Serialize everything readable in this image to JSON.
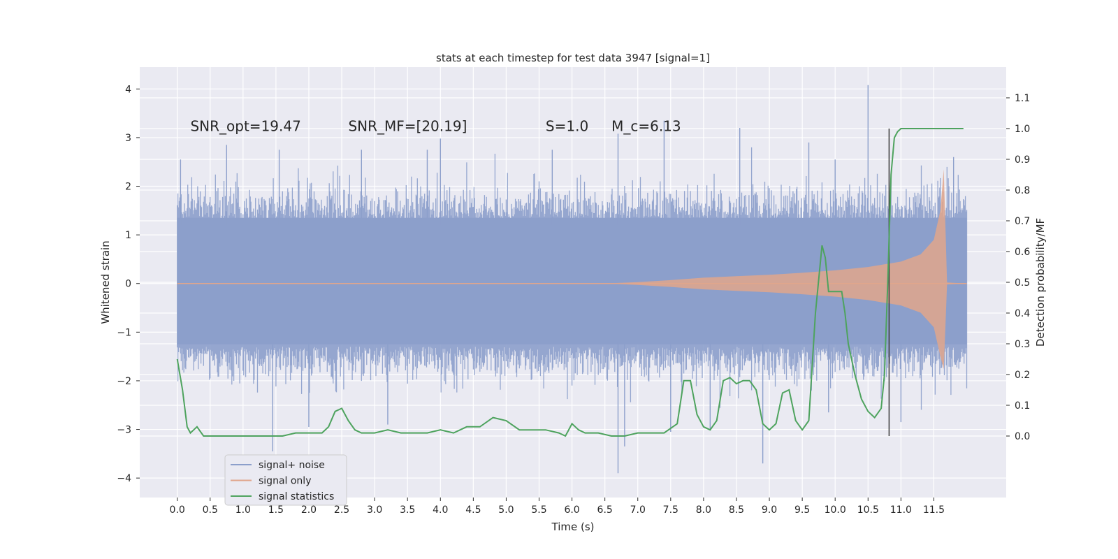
{
  "chart_data": {
    "type": "line",
    "title": "stats at each timestep for test data 3947 [signal=1]",
    "xlabel": "Time (s)",
    "ylabel": "Whitened strain",
    "ylabel_right": "Detection probability/MF",
    "xlim": [
      -0.57,
      12.6
    ],
    "ylim": [
      -4.4,
      4.45
    ],
    "ylim_right": [
      -0.2,
      1.2
    ],
    "x_ticks": [
      0.0,
      0.5,
      1.0,
      1.5,
      2.0,
      2.5,
      3.0,
      3.5,
      4.0,
      4.5,
      5.0,
      5.5,
      6.0,
      6.5,
      7.0,
      7.5,
      8.0,
      8.5,
      9.0,
      9.5,
      10.0,
      10.5,
      11.0,
      11.5
    ],
    "x_tick_labels": [
      "0.0",
      "0.5",
      "1.0",
      "1.5",
      "2.0",
      "2.5",
      "3.0",
      "3.5",
      "4.0",
      "4.5",
      "5.0",
      "5.5",
      "6.0",
      "6.5",
      "7.0",
      "7.5",
      "8.0",
      "8.5",
      "9.0",
      "9.5",
      "10.0",
      "10.5",
      "11.0",
      "11.5"
    ],
    "y_ticks": [
      -4,
      -3,
      -2,
      -1,
      0,
      1,
      2,
      3,
      4
    ],
    "y_tick_labels": [
      "−4",
      "−3",
      "−2",
      "−1",
      "0",
      "1",
      "2",
      "3",
      "4"
    ],
    "y_right_ticks": [
      0.0,
      0.1,
      0.2,
      0.3,
      0.4,
      0.5,
      0.6,
      0.7,
      0.8,
      0.9,
      1.0,
      1.1
    ],
    "y_right_tick_labels": [
      "0.0",
      "0.1",
      "0.2",
      "0.3",
      "0.4",
      "0.5",
      "0.6",
      "0.7",
      "0.8",
      "0.9",
      "1.0",
      "1.1"
    ],
    "annotations": [
      {
        "text": "SNR_opt=19.47",
        "x": 0.2,
        "y": 3.25
      },
      {
        "text": "SNR_MF=[20.19]",
        "x": 2.6,
        "y": 3.25
      },
      {
        "text": "S=1.0",
        "x": 5.6,
        "y": 3.25
      },
      {
        "text": "M_c=6.13",
        "x": 6.6,
        "y": 3.25
      }
    ],
    "vline_x": 10.82,
    "vline_y_right": [
      0.0,
      1.0
    ],
    "legend": {
      "placement": "lower-left",
      "entries": [
        {
          "label": "signal+ noise",
          "color": "#8c9fcb"
        },
        {
          "label": "signal only",
          "color": "#e0a68c"
        },
        {
          "label": "signal statistics",
          "color": "#4ea35e"
        }
      ]
    },
    "series": [
      {
        "name": "signal+ noise",
        "color": "#8c9fcb",
        "envelope_x": [
          0.0,
          12.0
        ],
        "typical_range": [
          -2.0,
          2.0
        ],
        "peaks_positive": [
          [
            0.05,
            2.55
          ],
          [
            0.75,
            2.85
          ],
          [
            1.55,
            2.75
          ],
          [
            2.8,
            2.75
          ],
          [
            3.8,
            2.75
          ],
          [
            4.0,
            2.98
          ],
          [
            5.7,
            2.75
          ],
          [
            6.7,
            3.08
          ],
          [
            7.4,
            3.35
          ],
          [
            8.55,
            3.2
          ],
          [
            9.6,
            2.9
          ],
          [
            10.0,
            2.55
          ],
          [
            10.5,
            4.08
          ],
          [
            11.8,
            2.6
          ]
        ],
        "peaks_negative": [
          [
            1.45,
            -3.45
          ],
          [
            2.0,
            -2.95
          ],
          [
            3.2,
            -2.9
          ],
          [
            6.7,
            -3.9
          ],
          [
            6.8,
            -3.35
          ],
          [
            7.5,
            -3.05
          ],
          [
            8.1,
            -3.0
          ],
          [
            8.9,
            -3.7
          ],
          [
            9.9,
            -2.65
          ],
          [
            11.0,
            -2.85
          ]
        ]
      },
      {
        "name": "signal only",
        "color": "#e0a68c",
        "amplitude_x": [
          6.5,
          7.0,
          7.5,
          8.0,
          8.5,
          9.0,
          9.5,
          10.0,
          10.5,
          11.0,
          11.3,
          11.5,
          11.6,
          11.65,
          11.68,
          11.7,
          12.0
        ],
        "amplitude_y": [
          0.0,
          0.03,
          0.07,
          0.12,
          0.15,
          0.18,
          0.22,
          0.27,
          0.34,
          0.45,
          0.6,
          0.9,
          1.5,
          2.35,
          1.0,
          0.02,
          0.0
        ]
      },
      {
        "name": "signal statistics",
        "color": "#4ea35e",
        "axis": "right",
        "x": [
          0.0,
          0.08,
          0.15,
          0.2,
          0.25,
          0.3,
          0.4,
          0.5,
          0.7,
          1.0,
          1.2,
          1.4,
          1.6,
          1.8,
          2.0,
          2.2,
          2.3,
          2.4,
          2.5,
          2.6,
          2.7,
          2.8,
          3.0,
          3.2,
          3.4,
          3.6,
          3.8,
          4.0,
          4.2,
          4.4,
          4.6,
          4.8,
          5.0,
          5.2,
          5.4,
          5.6,
          5.8,
          5.9,
          6.0,
          6.1,
          6.2,
          6.4,
          6.6,
          6.8,
          7.0,
          7.2,
          7.4,
          7.6,
          7.7,
          7.8,
          7.9,
          8.0,
          8.1,
          8.2,
          8.3,
          8.4,
          8.5,
          8.6,
          8.7,
          8.8,
          8.9,
          9.0,
          9.1,
          9.2,
          9.3,
          9.4,
          9.5,
          9.6,
          9.7,
          9.8,
          9.85,
          9.9,
          10.0,
          10.1,
          10.15,
          10.2,
          10.3,
          10.4,
          10.5,
          10.6,
          10.7,
          10.75,
          10.8,
          10.85,
          10.9,
          10.95,
          11.0,
          11.1,
          11.2,
          11.4,
          11.6,
          11.8,
          11.95
        ],
        "y": [
          0.25,
          0.15,
          0.03,
          0.01,
          0.02,
          0.03,
          0.0,
          0.0,
          0.0,
          0.0,
          0.0,
          0.0,
          0.0,
          0.01,
          0.01,
          0.01,
          0.03,
          0.08,
          0.09,
          0.05,
          0.02,
          0.01,
          0.01,
          0.02,
          0.01,
          0.01,
          0.01,
          0.02,
          0.01,
          0.03,
          0.03,
          0.06,
          0.05,
          0.02,
          0.02,
          0.02,
          0.01,
          0.0,
          0.04,
          0.02,
          0.01,
          0.01,
          0.0,
          0.0,
          0.01,
          0.01,
          0.01,
          0.04,
          0.18,
          0.18,
          0.07,
          0.03,
          0.02,
          0.05,
          0.18,
          0.19,
          0.17,
          0.18,
          0.18,
          0.15,
          0.04,
          0.02,
          0.04,
          0.14,
          0.15,
          0.05,
          0.02,
          0.05,
          0.4,
          0.62,
          0.58,
          0.47,
          0.47,
          0.47,
          0.4,
          0.3,
          0.2,
          0.12,
          0.08,
          0.06,
          0.09,
          0.2,
          0.5,
          0.85,
          0.97,
          0.99,
          1.0,
          1.0,
          1.0,
          1.0,
          1.0,
          1.0,
          1.0
        ]
      }
    ]
  }
}
